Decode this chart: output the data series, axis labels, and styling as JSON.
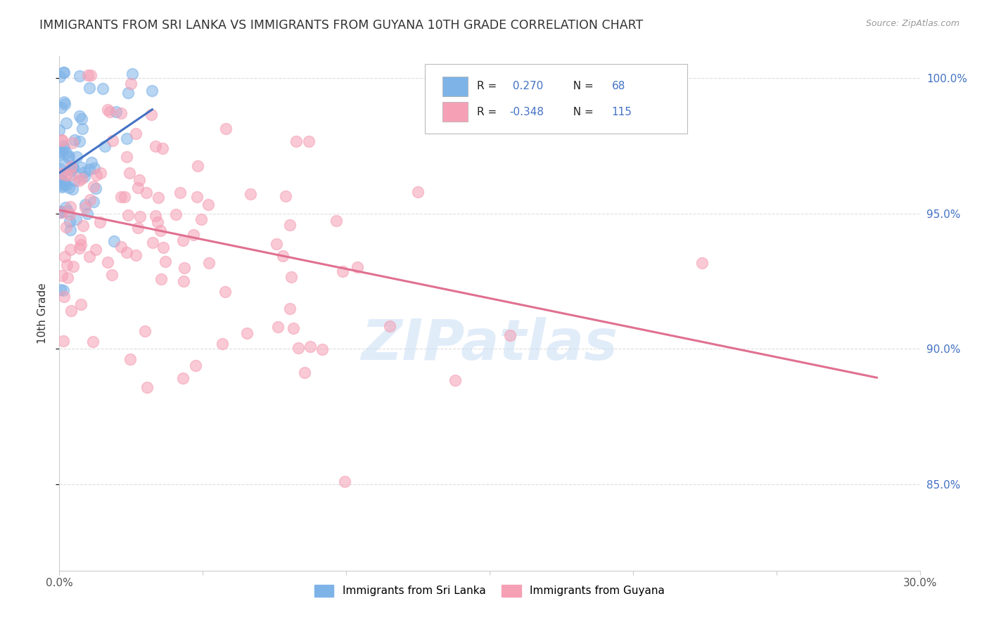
{
  "title": "IMMIGRANTS FROM SRI LANKA VS IMMIGRANTS FROM GUYANA 10TH GRADE CORRELATION CHART",
  "source": "Source: ZipAtlas.com",
  "ylabel": "10th Grade",
  "xlim": [
    0.0,
    0.3
  ],
  "ylim": [
    0.818,
    1.008
  ],
  "xticks": [
    0.0,
    0.05,
    0.1,
    0.15,
    0.2,
    0.25,
    0.3
  ],
  "xticklabels": [
    "0.0%",
    "",
    "",
    "",
    "",
    "",
    "30.0%"
  ],
  "yticks": [
    0.85,
    0.9,
    0.95,
    1.0
  ],
  "yticklabels": [
    "85.0%",
    "90.0%",
    "95.0%",
    "100.0%"
  ],
  "sri_lanka_R": 0.27,
  "sri_lanka_N": 68,
  "guyana_R": -0.348,
  "guyana_N": 115,
  "sri_lanka_color": "#7eb3e8",
  "guyana_color": "#f5a0b5",
  "sri_lanka_line_color": "#4472c4",
  "guyana_line_color": "#e07090",
  "legend_label_1": "Immigrants from Sri Lanka",
  "legend_label_2": "Immigrants from Guyana",
  "watermark": "ZIPatlas",
  "background_color": "#ffffff",
  "grid_color": "#dddddd",
  "title_fontsize": 12.5,
  "blue_color": "#4472c4",
  "text_color": "#333333"
}
